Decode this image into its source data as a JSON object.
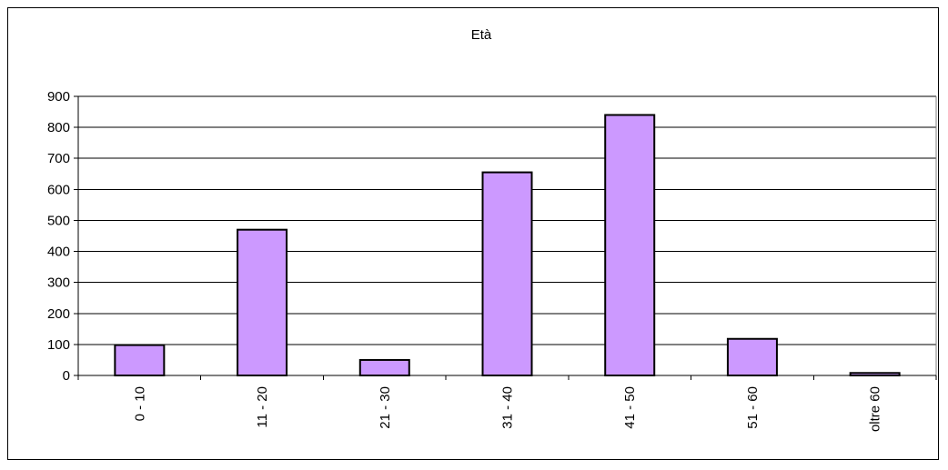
{
  "chart_data": {
    "type": "bar",
    "title": "Età",
    "categories": [
      "0 - 10",
      "11 - 20",
      "21 - 30",
      "31 - 40",
      "41 - 50",
      "51 - 60",
      "oltre 60"
    ],
    "values": [
      98,
      470,
      50,
      655,
      840,
      118,
      8
    ],
    "ylim": [
      0,
      900
    ],
    "yticks": [
      0,
      100,
      200,
      300,
      400,
      500,
      600,
      700,
      800,
      900
    ],
    "ytick_labels": [
      "0",
      "100",
      "200",
      "300",
      "400",
      "500",
      "600",
      "700",
      "800",
      "900"
    ],
    "grid": true,
    "legend": false,
    "colors": {
      "bar_fill": "#cc99ff",
      "bar_stroke": "#000000",
      "gridline": "#000000",
      "background": "#ffffff"
    }
  }
}
